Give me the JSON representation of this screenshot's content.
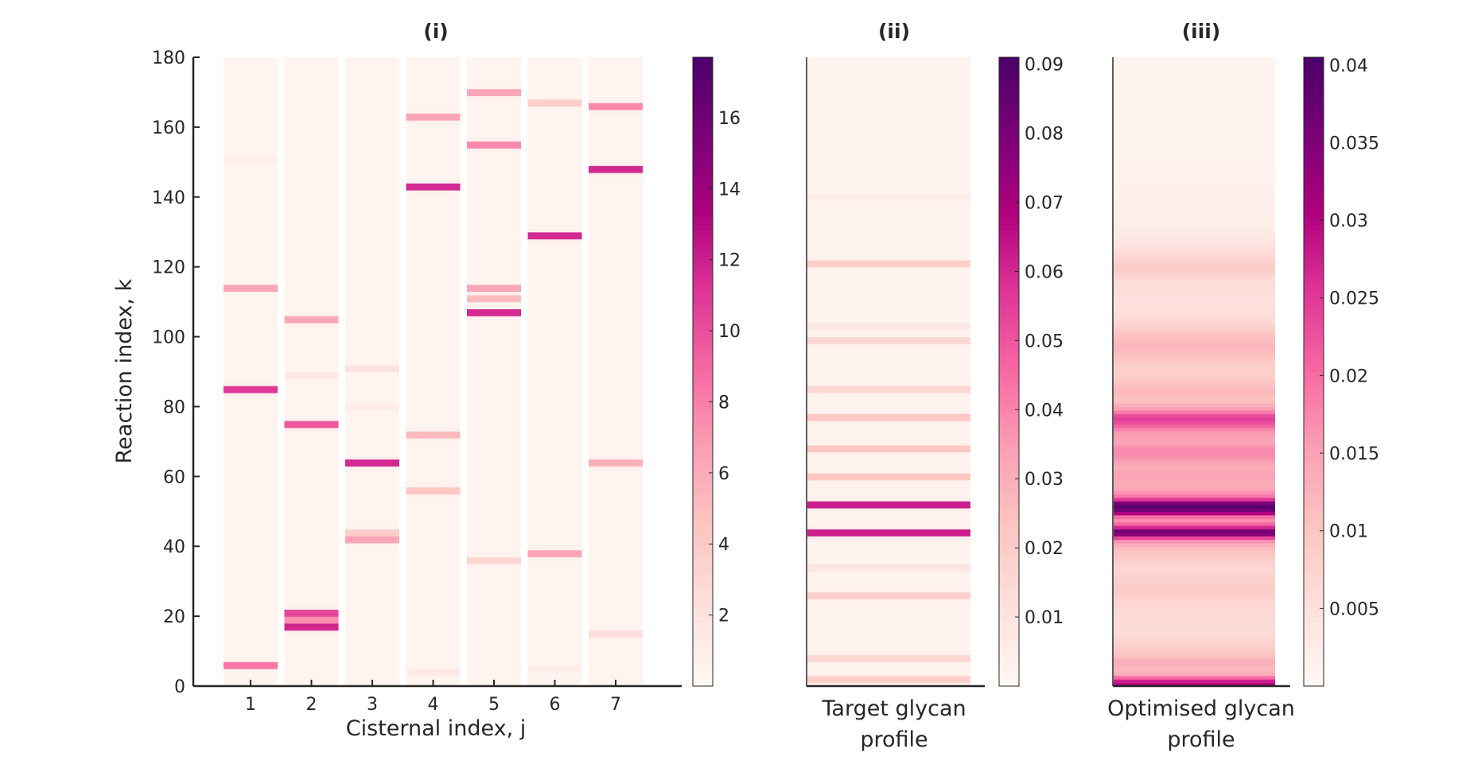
{
  "colors": {
    "colormap": [
      "#fff7f3",
      "#fde0dd",
      "#fcc5c0",
      "#fa9fb5",
      "#f768a1",
      "#dd3497",
      "#ae017e",
      "#7a0177",
      "#49006a"
    ],
    "axis": "#262626",
    "background": "#ffffff"
  },
  "chart_data": [
    {
      "panel": "i",
      "type": "heatmap",
      "title": "(i)",
      "xlabel": "Cisternal index, j",
      "ylabel": "Reaction index, k",
      "x_ticks": [
        "1",
        "2",
        "3",
        "4",
        "5",
        "6",
        "7"
      ],
      "y_ticks": [
        "0",
        "20",
        "40",
        "60",
        "80",
        "100",
        "120",
        "140",
        "160",
        "180"
      ],
      "ylim": [
        0,
        180
      ],
      "colorbar": {
        "min": 0,
        "max": 17.7,
        "ticks": [
          "2",
          "4",
          "6",
          "8",
          "10",
          "12",
          "14",
          "16"
        ],
        "tick_values": [
          2,
          4,
          6,
          8,
          10,
          12,
          14,
          16
        ]
      },
      "baseline": 0.3,
      "columns": [
        {
          "cisterna": 1,
          "peaks": [
            {
              "k": 6,
              "v": 12
            },
            {
              "k": 85,
              "v": 16
            },
            {
              "k": 114,
              "v": 9
            },
            {
              "k": 151,
              "v": 0.7
            }
          ]
        },
        {
          "cisterna": 2,
          "peaks": [
            {
              "k": 17,
              "v": 17
            },
            {
              "k": 19,
              "v": 10
            },
            {
              "k": 21,
              "v": 15
            },
            {
              "k": 75,
              "v": 14
            },
            {
              "k": 89,
              "v": 1.5
            },
            {
              "k": 105,
              "v": 9
            }
          ]
        },
        {
          "cisterna": 3,
          "peaks": [
            {
              "k": 42,
              "v": 9
            },
            {
              "k": 44,
              "v": 5
            },
            {
              "k": 64,
              "v": 17
            },
            {
              "k": 80,
              "v": 1
            },
            {
              "k": 91,
              "v": 2.5
            }
          ]
        },
        {
          "cisterna": 4,
          "peaks": [
            {
              "k": 4,
              "v": 1.5
            },
            {
              "k": 56,
              "v": 6
            },
            {
              "k": 72,
              "v": 7
            },
            {
              "k": 143,
              "v": 17
            },
            {
              "k": 163,
              "v": 9
            }
          ]
        },
        {
          "cisterna": 5,
          "peaks": [
            {
              "k": 36,
              "v": 4
            },
            {
              "k": 107,
              "v": 17
            },
            {
              "k": 111,
              "v": 7
            },
            {
              "k": 114,
              "v": 9
            },
            {
              "k": 155,
              "v": 11
            },
            {
              "k": 170,
              "v": 9
            }
          ]
        },
        {
          "cisterna": 6,
          "peaks": [
            {
              "k": 5,
              "v": 1
            },
            {
              "k": 38,
              "v": 9
            },
            {
              "k": 129,
              "v": 17
            },
            {
              "k": 167,
              "v": 5
            }
          ]
        },
        {
          "cisterna": 7,
          "peaks": [
            {
              "k": 15,
              "v": 3
            },
            {
              "k": 64,
              "v": 8
            },
            {
              "k": 148,
              "v": 17
            },
            {
              "k": 166,
              "v": 11
            }
          ]
        }
      ]
    },
    {
      "panel": "ii",
      "type": "heatmap",
      "title": "(ii)",
      "xlabel": "Target glycan profile",
      "ylim": [
        0,
        180
      ],
      "colorbar": {
        "min": 0,
        "max": 0.091,
        "ticks": [
          "0.01",
          "0.02",
          "0.03",
          "0.04",
          "0.05",
          "0.06",
          "0.07",
          "0.08",
          "0.09"
        ],
        "tick_values": [
          0.01,
          0.02,
          0.03,
          0.04,
          0.05,
          0.06,
          0.07,
          0.08,
          0.09
        ]
      },
      "baseline": 0.002,
      "peaks": [
        {
          "k": 2,
          "v": 0.025
        },
        {
          "k": 8,
          "v": 0.02
        },
        {
          "k": 26,
          "v": 0.025
        },
        {
          "k": 34,
          "v": 0.01
        },
        {
          "k": 44,
          "v": 0.09
        },
        {
          "k": 52,
          "v": 0.09
        },
        {
          "k": 60,
          "v": 0.03
        },
        {
          "k": 68,
          "v": 0.03
        },
        {
          "k": 77,
          "v": 0.03
        },
        {
          "k": 85,
          "v": 0.02
        },
        {
          "k": 99,
          "v": 0.02
        },
        {
          "k": 103,
          "v": 0.008
        },
        {
          "k": 121,
          "v": 0.025
        },
        {
          "k": 140,
          "v": 0.005
        }
      ]
    },
    {
      "panel": "iii",
      "type": "heatmap",
      "title": "(iii)",
      "xlabel": "Optimised glycan profile",
      "ylim": [
        0,
        180
      ],
      "colorbar": {
        "min": 0,
        "max": 0.0405,
        "ticks": [
          "0.005",
          "0.01",
          "0.015",
          "0.02",
          "0.025",
          "0.03",
          "0.035",
          "0.04"
        ],
        "tick_values": [
          0.005,
          0.01,
          0.015,
          0.02,
          0.025,
          0.03,
          0.035,
          0.04
        ]
      },
      "values": [
        [
          0,
          0.03
        ],
        [
          1,
          0.03
        ],
        [
          2,
          0.025
        ],
        [
          3,
          0.015
        ],
        [
          4,
          0.012
        ],
        [
          6,
          0.012
        ],
        [
          7,
          0.014
        ],
        [
          8,
          0.012
        ],
        [
          9,
          0.01
        ],
        [
          12,
          0.008
        ],
        [
          15,
          0.006
        ],
        [
          18,
          0.006
        ],
        [
          24,
          0.007
        ],
        [
          27,
          0.009
        ],
        [
          30,
          0.008
        ],
        [
          34,
          0.007
        ],
        [
          37,
          0.009
        ],
        [
          40,
          0.012
        ],
        [
          42,
          0.018
        ],
        [
          44,
          0.04
        ],
        [
          46,
          0.022
        ],
        [
          48,
          0.015
        ],
        [
          50,
          0.035
        ],
        [
          52,
          0.04
        ],
        [
          54,
          0.02
        ],
        [
          56,
          0.015
        ],
        [
          58,
          0.013
        ],
        [
          60,
          0.015
        ],
        [
          63,
          0.013
        ],
        [
          66,
          0.017
        ],
        [
          68,
          0.017
        ],
        [
          70,
          0.014
        ],
        [
          73,
          0.016
        ],
        [
          75,
          0.022
        ],
        [
          77,
          0.025
        ],
        [
          79,
          0.016
        ],
        [
          82,
          0.01
        ],
        [
          85,
          0.012
        ],
        [
          88,
          0.009
        ],
        [
          91,
          0.008
        ],
        [
          94,
          0.01
        ],
        [
          97,
          0.012
        ],
        [
          100,
          0.011
        ],
        [
          104,
          0.007
        ],
        [
          108,
          0.005
        ],
        [
          112,
          0.005
        ],
        [
          116,
          0.006
        ],
        [
          120,
          0.009
        ],
        [
          123,
          0.007
        ],
        [
          127,
          0.004
        ],
        [
          132,
          0.002
        ],
        [
          136,
          0.002
        ],
        [
          140,
          0.0015
        ],
        [
          150,
          0.001
        ],
        [
          160,
          0.0008
        ],
        [
          180,
          0.0008
        ]
      ]
    }
  ]
}
